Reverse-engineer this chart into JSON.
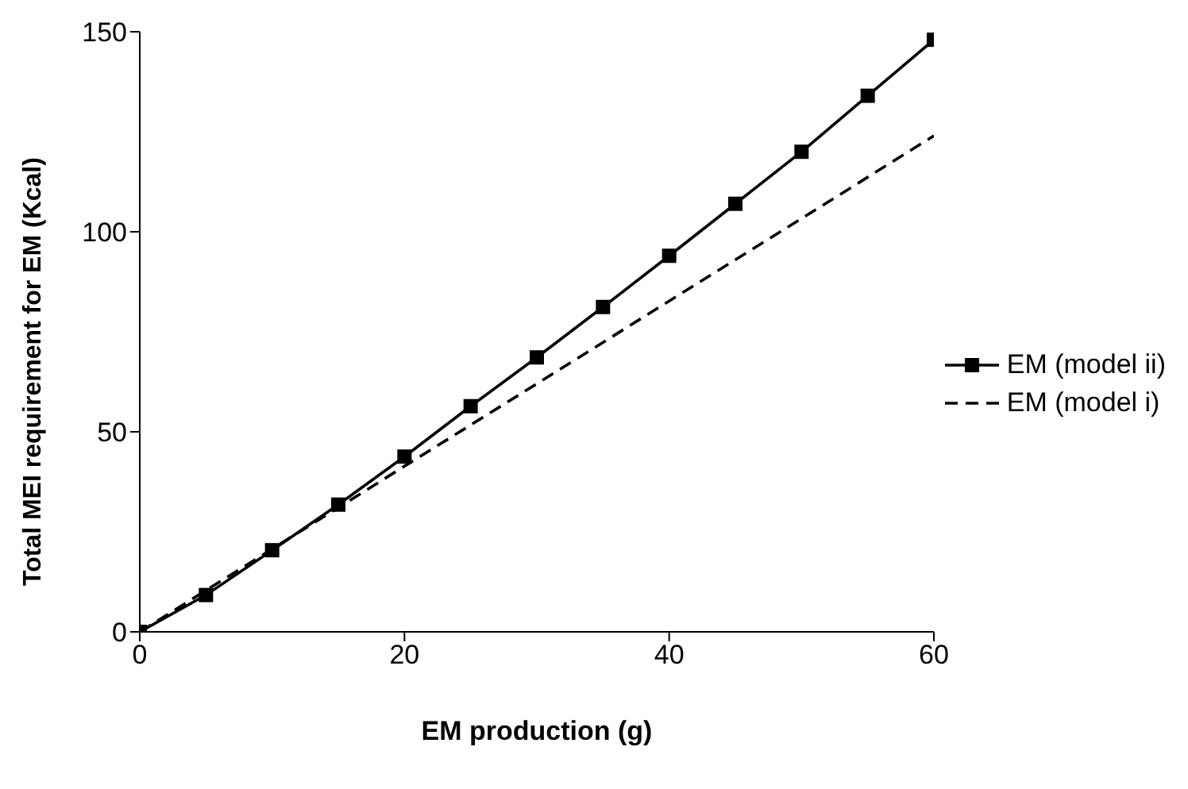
{
  "chart_data": {
    "type": "line",
    "xlabel": "EM production (g)",
    "ylabel": "Total MEI requirement for EM (Kcal)",
    "xlim": [
      0,
      60
    ],
    "xticks": [
      0,
      20,
      40,
      60
    ],
    "ylim": [
      0,
      150
    ],
    "yticks": [
      0,
      50,
      100,
      150
    ],
    "legend": "right",
    "series": [
      {
        "name": "EM (model ii)",
        "color": "#000000",
        "marker": "square",
        "line_style": "solid",
        "x": [
          0,
          5,
          10,
          15,
          20,
          25,
          30,
          35,
          40,
          45,
          50,
          55,
          60
        ],
        "values": [
          0,
          9.2,
          20.4,
          31.8,
          43.8,
          56.4,
          68.6,
          81.2,
          94,
          107,
          120,
          134,
          148
        ]
      },
      {
        "name": "EM (model i)",
        "color": "#000000",
        "marker": "none",
        "line_style": "dashed",
        "x": [
          0,
          10,
          20,
          30,
          40,
          50,
          60
        ],
        "values": [
          0,
          20.7,
          41.4,
          62,
          82.7,
          103.3,
          124
        ]
      }
    ]
  }
}
